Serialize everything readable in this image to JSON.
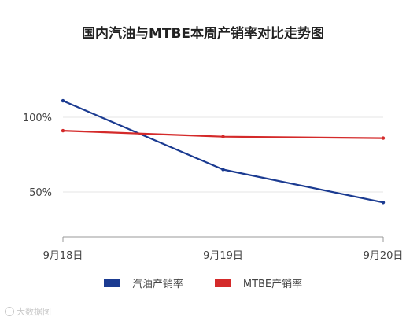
{
  "chart_data": {
    "type": "line",
    "title": "国内汽油与MTBE本周产销率对比走势图",
    "categories": [
      "9月18日",
      "9月19日",
      "9月20日"
    ],
    "series": [
      {
        "name": "汽油产销率",
        "color": "#1b3b91",
        "values": [
          111,
          65,
          43
        ]
      },
      {
        "name": "MTBE产销率",
        "color": "#d42a2a",
        "values": [
          91,
          87,
          86
        ]
      }
    ],
    "yticks": [
      {
        "value": 100,
        "label": "100%"
      },
      {
        "value": 50,
        "label": "50%"
      }
    ],
    "ylim": [
      20,
      130
    ],
    "grid": true,
    "legend_position": "bottom-center"
  },
  "watermark": "大数据图"
}
